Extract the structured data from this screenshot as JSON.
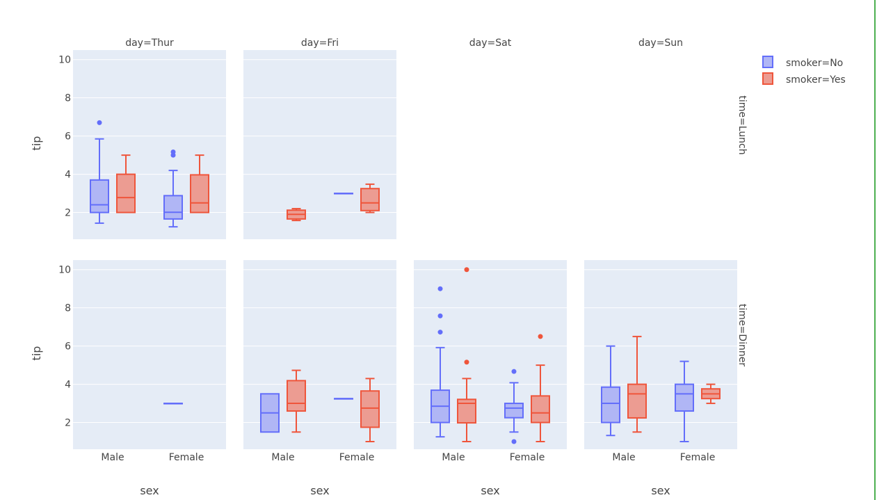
{
  "chart_data": {
    "type": "box",
    "title": "",
    "ylabel": "tip",
    "xlabel": "sex",
    "categories": [
      "Male",
      "Female"
    ],
    "ylim": [
      0.6,
      10.5
    ],
    "y_ticks": [
      2,
      4,
      6,
      8,
      10
    ],
    "grid": true,
    "legend_position": "top-right",
    "col_labels": [
      "day=Thur",
      "day=Fri",
      "day=Sat",
      "day=Sun"
    ],
    "row_labels": [
      "time=Lunch",
      "time=Dinner"
    ],
    "series": [
      {
        "name": "smoker=No",
        "color": "#636efa",
        "fill": "#b0b6f5"
      },
      {
        "name": "smoker=Yes",
        "color": "#ef553b",
        "fill": "#ec9c92"
      }
    ],
    "panels": [
      {
        "row": 0,
        "col": 0,
        "boxes": [
          {
            "series": 0,
            "category": "Male",
            "min": 1.44,
            "q1": 2.0,
            "median": 2.4,
            "q3": 3.7,
            "max": 5.85,
            "outliers": [
              6.7
            ]
          },
          {
            "series": 1,
            "category": "Male",
            "min": 2.0,
            "q1": 2.0,
            "median": 2.78,
            "q3": 4.0,
            "max": 5.0,
            "outliers": []
          },
          {
            "series": 0,
            "category": "Female",
            "min": 1.25,
            "q1": 1.66,
            "median": 2.01,
            "q3": 2.88,
            "max": 4.2,
            "outliers": [
              5.0,
              5.17
            ]
          },
          {
            "series": 1,
            "category": "Female",
            "min": 2.0,
            "q1": 2.0,
            "median": 2.5,
            "q3": 3.97,
            "max": 5.0,
            "outliers": []
          }
        ]
      },
      {
        "row": 0,
        "col": 1,
        "boxes": [
          {
            "series": 1,
            "category": "Male",
            "min": 1.58,
            "q1": 1.66,
            "median": 1.9,
            "q3": 2.12,
            "max": 2.2,
            "outliers": []
          },
          {
            "series": 0,
            "category": "Female",
            "min": 3.0,
            "q1": 3.0,
            "median": 3.0,
            "q3": 3.0,
            "max": 3.0,
            "outliers": []
          },
          {
            "series": 1,
            "category": "Female",
            "min": 2.0,
            "q1": 2.1,
            "median": 2.5,
            "q3": 3.25,
            "max": 3.48,
            "outliers": []
          }
        ]
      },
      {
        "row": 1,
        "col": 0,
        "boxes": [
          {
            "series": 0,
            "category": "Female",
            "min": 3.0,
            "q1": 3.0,
            "median": 3.0,
            "q3": 3.0,
            "max": 3.0,
            "outliers": []
          }
        ]
      },
      {
        "row": 1,
        "col": 1,
        "boxes": [
          {
            "series": 0,
            "category": "Male",
            "min": 1.5,
            "q1": 1.5,
            "median": 2.5,
            "q3": 3.5,
            "max": 3.5,
            "outliers": []
          },
          {
            "series": 1,
            "category": "Male",
            "min": 1.5,
            "q1": 2.6,
            "median": 3.0,
            "q3": 4.19,
            "max": 4.73,
            "outliers": []
          },
          {
            "series": 0,
            "category": "Female",
            "min": 3.25,
            "q1": 3.25,
            "median": 3.25,
            "q3": 3.25,
            "max": 3.25,
            "outliers": []
          },
          {
            "series": 1,
            "category": "Female",
            "min": 1.0,
            "q1": 1.75,
            "median": 2.75,
            "q3": 3.65,
            "max": 4.3,
            "outliers": []
          }
        ]
      },
      {
        "row": 1,
        "col": 2,
        "boxes": [
          {
            "series": 0,
            "category": "Male",
            "min": 1.25,
            "q1": 2.0,
            "median": 2.85,
            "q3": 3.69,
            "max": 5.92,
            "outliers": [
              6.73,
              7.58,
              9.0
            ]
          },
          {
            "series": 1,
            "category": "Male",
            "min": 1.0,
            "q1": 1.98,
            "median": 3.0,
            "q3": 3.21,
            "max": 4.3,
            "outliers": [
              5.16,
              10.0
            ]
          },
          {
            "series": 0,
            "category": "Female",
            "min": 1.5,
            "q1": 2.25,
            "median": 2.75,
            "q3": 3.0,
            "max": 4.08,
            "outliers": [
              1.0,
              4.67
            ]
          },
          {
            "series": 1,
            "category": "Female",
            "min": 1.0,
            "q1": 2.0,
            "median": 2.5,
            "q3": 3.39,
            "max": 5.0,
            "outliers": [
              6.5
            ]
          }
        ]
      },
      {
        "row": 1,
        "col": 3,
        "boxes": [
          {
            "series": 0,
            "category": "Male",
            "min": 1.32,
            "q1": 2.0,
            "median": 3.0,
            "q3": 3.85,
            "max": 6.0,
            "outliers": []
          },
          {
            "series": 1,
            "category": "Male",
            "min": 1.5,
            "q1": 2.24,
            "median": 3.5,
            "q3": 4.0,
            "max": 6.5,
            "outliers": []
          },
          {
            "series": 0,
            "category": "Female",
            "min": 1.0,
            "q1": 2.6,
            "median": 3.5,
            "q3": 4.0,
            "max": 5.2,
            "outliers": []
          },
          {
            "series": 1,
            "category": "Female",
            "min": 3.0,
            "q1": 3.25,
            "median": 3.5,
            "q3": 3.76,
            "max": 4.0,
            "outliers": []
          }
        ]
      }
    ]
  }
}
